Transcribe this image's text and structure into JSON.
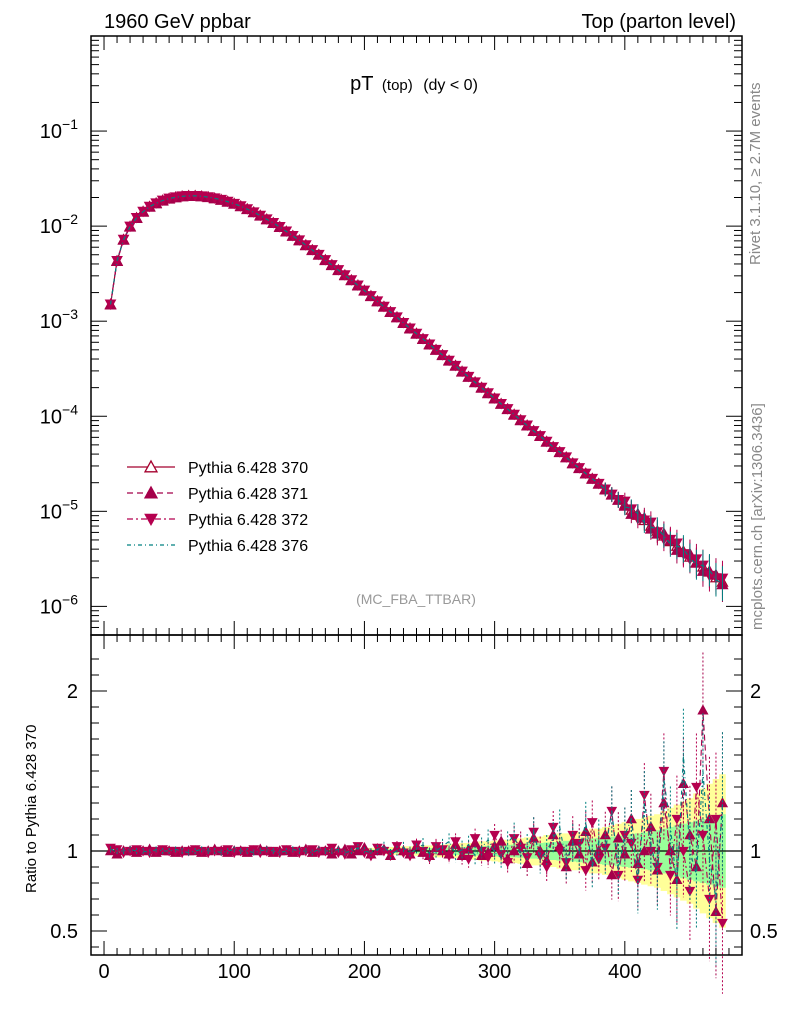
{
  "header": {
    "left_label": "1960 GeV ppbar",
    "right_label": "Top (parton level)"
  },
  "side_labels": {
    "rivet": "Rivet 3.1.10, ≥ 2.7M events",
    "mcplots": "mcplots.cern.ch [arXiv:1306.3436]"
  },
  "chart_data": {
    "type": "line",
    "title_main": "pT",
    "title_sub": "(top)",
    "title_cond": "(dy < 0)",
    "analysis": "(MC_FBA_TTBAR)",
    "xlim": [
      -10,
      490
    ],
    "ylim_log": [
      5e-07,
      1.0
    ],
    "ratio_ylabel": "Ratio to Pythia 6.428 370",
    "ratio_ylim": [
      0.35,
      2.35
    ],
    "x_ticks": [
      "0",
      "100",
      "200",
      "300",
      "400"
    ],
    "y_ticks": [
      {
        "base": "10",
        "exp": "−1"
      },
      {
        "base": "10",
        "exp": "−2"
      },
      {
        "base": "10",
        "exp": "−3"
      },
      {
        "base": "10",
        "exp": "−4"
      },
      {
        "base": "10",
        "exp": "−5"
      },
      {
        "base": "10",
        "exp": "−6"
      }
    ],
    "ratio_ticks": [
      "2",
      "1",
      "0.5"
    ],
    "series": [
      {
        "name": "Pythia 6.428 370",
        "color": "#a5002e",
        "marker": "triangle-open",
        "dash": ""
      },
      {
        "name": "Pythia 6.428 371",
        "color": "#a5004a",
        "marker": "triangle-filled",
        "dash": "6,4"
      },
      {
        "name": "Pythia 6.428 372",
        "color": "#b5004f",
        "marker": "triangle-down",
        "dash": "6,3,2,3"
      },
      {
        "name": "Pythia 6.428 376",
        "color": "#008080",
        "marker": "none",
        "dash": "4,3,1,3"
      }
    ],
    "main_points": [
      [
        5,
        0.0015
      ],
      [
        10,
        0.0043
      ],
      [
        15,
        0.0072
      ],
      [
        20,
        0.0099
      ],
      [
        25,
        0.0122
      ],
      [
        30,
        0.0142
      ],
      [
        35,
        0.016
      ],
      [
        40,
        0.0174
      ],
      [
        45,
        0.0186
      ],
      [
        50,
        0.0195
      ],
      [
        55,
        0.0201
      ],
      [
        60,
        0.0206
      ],
      [
        65,
        0.0208
      ],
      [
        70,
        0.0208
      ],
      [
        75,
        0.0206
      ],
      [
        80,
        0.0202
      ],
      [
        85,
        0.0196
      ],
      [
        90,
        0.0189
      ],
      [
        95,
        0.0181
      ],
      [
        100,
        0.0172
      ],
      [
        105,
        0.0162
      ],
      [
        110,
        0.0151
      ],
      [
        115,
        0.014
      ],
      [
        120,
        0.0129
      ],
      [
        125,
        0.0118
      ],
      [
        130,
        0.0108
      ],
      [
        135,
        0.0098
      ],
      [
        140,
        0.0088
      ],
      [
        145,
        0.0079
      ],
      [
        150,
        0.0071
      ],
      [
        155,
        0.0063
      ],
      [
        160,
        0.0056
      ],
      [
        165,
        0.005
      ],
      [
        170,
        0.0044
      ],
      [
        175,
        0.0039
      ],
      [
        180,
        0.00345
      ],
      [
        185,
        0.00305
      ],
      [
        190,
        0.0027
      ],
      [
        195,
        0.00238
      ],
      [
        200,
        0.0021
      ],
      [
        205,
        0.00184
      ],
      [
        210,
        0.00162
      ],
      [
        215,
        0.00142
      ],
      [
        220,
        0.00125
      ],
      [
        225,
        0.0011
      ],
      [
        230,
        0.00096
      ],
      [
        235,
        0.00084
      ],
      [
        240,
        0.00074
      ],
      [
        245,
        0.00065
      ],
      [
        250,
        0.00057
      ],
      [
        255,
        0.0005
      ],
      [
        260,
        0.00044
      ],
      [
        265,
        0.000385
      ],
      [
        270,
        0.00034
      ],
      [
        275,
        0.000295
      ],
      [
        280,
        0.00026
      ],
      [
        285,
        0.000228
      ],
      [
        290,
        0.0002
      ],
      [
        295,
        0.000175
      ],
      [
        300,
        0.000154
      ],
      [
        305,
        0.000135
      ],
      [
        310,
        0.000119
      ],
      [
        315,
        0.000104
      ],
      [
        320,
        9.1e-05
      ],
      [
        325,
        8e-05
      ],
      [
        330,
        7e-05
      ],
      [
        335,
        6.2e-05
      ],
      [
        340,
        5.4e-05
      ],
      [
        345,
        4.75e-05
      ],
      [
        350,
        4.2e-05
      ],
      [
        355,
        3.7e-05
      ],
      [
        360,
        3.2e-05
      ],
      [
        365,
        2.85e-05
      ],
      [
        370,
        2.5e-05
      ],
      [
        375,
        2.2e-05
      ],
      [
        380,
        1.95e-05
      ],
      [
        385,
        1.7e-05
      ],
      [
        390,
        1.5e-05
      ],
      [
        395,
        1.32e-05
      ],
      [
        400,
        1.17e-05
      ],
      [
        405,
        1.03e-05
      ],
      [
        410,
        9.1e-06
      ],
      [
        415,
        8e-06
      ],
      [
        420,
        7e-06
      ],
      [
        425,
        6.2e-06
      ],
      [
        430,
        5.5e-06
      ],
      [
        435,
        4.8e-06
      ],
      [
        440,
        4.3e-06
      ],
      [
        445,
        3.8e-06
      ],
      [
        450,
        3.3e-06
      ],
      [
        455,
        2.9e-06
      ],
      [
        460,
        2.6e-06
      ],
      [
        465,
        2.3e-06
      ],
      [
        470,
        2e-06
      ],
      [
        475,
        1.8e-06
      ]
    ],
    "ratio_371": [
      1.0,
      0.98,
      1.0,
      1.0,
      0.99,
      1.0,
      1.01,
      0.99,
      1.0,
      1.0,
      0.99,
      1.0,
      1.0,
      1.0,
      0.99,
      1.0,
      1.01,
      1.0,
      0.99,
      1.0,
      1.0,
      0.99,
      1.0,
      1.01,
      1.0,
      0.99,
      1.0,
      1.0,
      0.99,
      1.0,
      1.01,
      0.99,
      1.0,
      1.0,
      0.98,
      1.0,
      1.01,
      0.98,
      1.0,
      1.02,
      0.98,
      1.0,
      1.01,
      0.97,
      1.02,
      1.0,
      0.98,
      1.03,
      0.99,
      0.97,
      1.02,
      1.0,
      0.98,
      1.04,
      0.97,
      1.01,
      1.05,
      0.97,
      0.99,
      1.03,
      1.06,
      0.95,
      1.0,
      1.04,
      0.92,
      1.08,
      1.0,
      0.94,
      1.1,
      1.03,
      0.9,
      1.06,
      0.98,
      1.12,
      0.93,
      1.0,
      1.1,
      0.85,
      1.08,
      0.98,
      1.2,
      0.92,
      1.0,
      1.15,
      0.88,
      1.3,
      1.0,
      0.82,
      1.42,
      1.1,
      0.9,
      1.88,
      1.2,
      0.62,
      1.3
    ],
    "ratio_372": [
      1.02,
      1.01,
      0.99,
      1.0,
      1.01,
      1.0,
      0.99,
      1.0,
      1.01,
      1.0,
      1.0,
      0.99,
      1.0,
      1.01,
      1.0,
      0.99,
      1.0,
      1.0,
      1.01,
      0.99,
      1.0,
      1.0,
      1.01,
      0.99,
      1.0,
      1.0,
      0.99,
      1.01,
      1.0,
      0.99,
      1.0,
      1.01,
      0.99,
      1.0,
      1.02,
      0.99,
      0.98,
      1.01,
      1.03,
      0.99,
      0.97,
      1.02,
      1.0,
      0.98,
      1.03,
      0.99,
      0.97,
      1.04,
      1.0,
      0.96,
      1.03,
      1.01,
      0.97,
      1.06,
      0.99,
      0.95,
      1.08,
      1.0,
      0.96,
      1.1,
      0.98,
      0.93,
      1.08,
      1.02,
      0.96,
      1.12,
      0.97,
      0.9,
      1.15,
      1.0,
      0.93,
      1.1,
      1.05,
      0.88,
      1.18,
      0.95,
      1.02,
      1.25,
      0.85,
      1.1,
      1.05,
      0.82,
      1.35,
      1.0,
      0.9,
      1.5,
      0.85,
      1.2,
      1.0,
      0.75,
      1.4,
      1.1,
      0.7,
      1.2,
      0.55
    ],
    "ratio_376": [
      1.01,
      1.0,
      1.0,
      1.01,
      1.0,
      1.0,
      0.99,
      1.01,
      1.0,
      1.0,
      1.01,
      1.0,
      0.99,
      1.0,
      1.01,
      1.0,
      1.0,
      0.99,
      1.0,
      1.01,
      1.0,
      1.0,
      0.99,
      1.0,
      1.01,
      1.0,
      0.99,
      1.0,
      1.01,
      1.0,
      1.0,
      0.99,
      1.01,
      1.0,
      1.0,
      1.01,
      0.99,
      1.0,
      1.02,
      1.0,
      0.99,
      1.01,
      1.03,
      0.98,
      1.0,
      1.02,
      0.99,
      1.01,
      1.04,
      0.98,
      1.0,
      1.03,
      1.06,
      0.98,
      1.01,
      1.04,
      0.97,
      1.02,
      1.07,
      0.99,
      0.96,
      1.05,
      1.1,
      0.97,
      1.02,
      1.12,
      0.95,
      1.0,
      1.08,
      1.15,
      0.93,
      1.05,
      1.0,
      1.18,
      0.9,
      1.06,
      1.0,
      1.25,
      0.88,
      1.1,
      1.2,
      0.8,
      1.3,
      1.05,
      0.85,
      1.45,
      1.15,
      0.78,
      1.6,
      1.0,
      0.85,
      1.5,
      0.95,
      0.7,
      1.3
    ],
    "band_yellow_halfwidth": [
      0.01,
      0.01,
      0.01,
      0.01,
      0.01,
      0.01,
      0.01,
      0.01,
      0.01,
      0.01,
      0.01,
      0.01,
      0.01,
      0.01,
      0.01,
      0.01,
      0.01,
      0.01,
      0.01,
      0.01,
      0.01,
      0.01,
      0.01,
      0.01,
      0.01,
      0.01,
      0.01,
      0.01,
      0.01,
      0.01,
      0.01,
      0.01,
      0.01,
      0.01,
      0.01,
      0.01,
      0.01,
      0.01,
      0.015,
      0.015,
      0.02,
      0.02,
      0.02,
      0.025,
      0.025,
      0.03,
      0.03,
      0.03,
      0.035,
      0.035,
      0.04,
      0.04,
      0.045,
      0.045,
      0.05,
      0.05,
      0.055,
      0.06,
      0.06,
      0.065,
      0.07,
      0.07,
      0.075,
      0.08,
      0.085,
      0.09,
      0.09,
      0.1,
      0.1,
      0.11,
      0.11,
      0.12,
      0.12,
      0.13,
      0.14,
      0.14,
      0.15,
      0.16,
      0.17,
      0.18,
      0.19,
      0.2,
      0.21,
      0.22,
      0.23,
      0.25,
      0.27,
      0.29,
      0.31,
      0.33,
      0.36,
      0.39,
      0.42,
      0.45,
      0.48
    ],
    "band_green_halfwidth": [
      0.005,
      0.005,
      0.005,
      0.005,
      0.005,
      0.005,
      0.005,
      0.005,
      0.005,
      0.005,
      0.005,
      0.005,
      0.005,
      0.005,
      0.005,
      0.005,
      0.005,
      0.005,
      0.005,
      0.005,
      0.005,
      0.005,
      0.005,
      0.005,
      0.005,
      0.005,
      0.005,
      0.005,
      0.005,
      0.005,
      0.005,
      0.005,
      0.005,
      0.005,
      0.005,
      0.005,
      0.005,
      0.006,
      0.007,
      0.008,
      0.009,
      0.01,
      0.011,
      0.012,
      0.013,
      0.014,
      0.015,
      0.016,
      0.017,
      0.018,
      0.02,
      0.021,
      0.022,
      0.024,
      0.025,
      0.027,
      0.028,
      0.03,
      0.032,
      0.034,
      0.036,
      0.038,
      0.04,
      0.042,
      0.045,
      0.048,
      0.05,
      0.053,
      0.056,
      0.06,
      0.063,
      0.066,
      0.07,
      0.074,
      0.078,
      0.082,
      0.086,
      0.09,
      0.095,
      0.1,
      0.105,
      0.11,
      0.115,
      0.12,
      0.13,
      0.14,
      0.15,
      0.16,
      0.17,
      0.18,
      0.19,
      0.2,
      0.21,
      0.22,
      0.23
    ]
  }
}
